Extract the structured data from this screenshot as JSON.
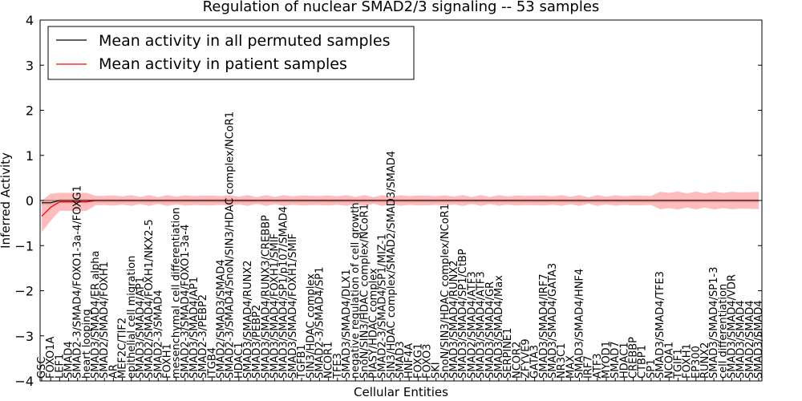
{
  "chart_data": {
    "type": "line",
    "title": "Regulation of nuclear SMAD2/3 signaling -- 53 samples",
    "xlabel": "Cellular Entities",
    "ylabel": "Inferred Activity",
    "ylim": [
      -4,
      4
    ],
    "yticks": [
      -4,
      -3,
      -2,
      -1,
      0,
      1,
      2,
      3,
      4
    ],
    "grid": false,
    "legend_position": "top-left",
    "series": [
      {
        "name": "Mean activity in all permuted samples",
        "color": "#000000"
      },
      {
        "name": "Mean activity in patient samples",
        "color": "#ff0000"
      }
    ],
    "entities": [
      "GSC",
      "FOXO1A",
      "LEF1",
      "SMAD4",
      "SMAD2-3/SMAD4/FOXO1-3a-4/FOXG1",
      "heart looping",
      "SMAD3/SMAD4/ER alpha",
      "SMAD2/SMAD4/FOXH1",
      "AR",
      "MEF2C/TIF2",
      "epithelial cell migration",
      "SMAD3/SMAD4/AP1",
      "SMAD2/SMAD4/FOXH1/NKX2-5",
      "SMAD2-3/SMAD4",
      "FOXH1",
      "mesenchymal cell differentiation",
      "SMAD2-3/SMAD4/FOXO1-3a-4",
      "SMAD3/SMAD4/AP1",
      "SMAD2-3/PEBP2",
      "ITGB4",
      "SMAD2/SMAD3/SMAD4",
      "SMAD2-3/SMAD4/SnoN/SIN3/HDAC complex/NCoR1",
      "HDAC1",
      "SMAD3/SMAD4/RUNX2",
      "SMAD3/PEBP2",
      "SMAD3/SMAD4/RUNX3/CREBBP",
      "SMAD3/SMAD4/FOXH1/SMIF",
      "SMAD3/SMAD4/SP1/p107/SMAD4",
      "SMAD3/SMAD4/FOXH1/SMIF",
      "TGFB1",
      "SIN3/HDAC complex",
      "SMAD2-3/SMAD4/SP1",
      "NCOR1",
      "TFE3",
      "SMAD3/SMAD4/DLX1",
      "negative regulation of cell growth",
      "SnoN/SIN3/HDAC complex/NCoR1",
      "PIASY/HDAC complex",
      "SMAD2-3/SMAD4/SP1/MIZ-1",
      "SIN3/HDAC complex/SMAD2/SMAD3/SMAD4",
      "SMAD3",
      "HNF4A",
      "FOXG1",
      "FOXO3",
      "SKI",
      "SnoN/SIN3/HDAC complex/NCoR1",
      "SMAD3/SMAD4/RUNX2",
      "SMAD3/SMAD4/SP1/CtBP",
      "SMAD2/SMAD4/ATF3",
      "SMAD3/SMAD4/ATF3",
      "SMAD3/SMAD4/GR",
      "SMAD3/SMAD4/Max",
      "SERPINE1",
      "NCOR2",
      "ZFYVE9",
      "GATA3",
      "SMAD3/SMAD4/IRF7",
      "SMAD3/SMAD4/GATA3",
      "NR3C1",
      "MAX",
      "SMAD3/SMAD4/HNF4",
      "IRF7",
      "ATF3",
      "MYOD1",
      "SMAD7",
      "HDAC1",
      "CREBBP",
      "CTBP1",
      "SP1",
      "SMAD3/SMAD4/TFE3",
      "NCOA1",
      "TGIF1",
      "FOXH1",
      "EP300",
      "RUNX2",
      "SMAD3/SMAD4/SP1-3",
      "cell differentiation",
      "SMAD3/SMAD4/VDR",
      "SMAD3/SMAD4",
      "SMAD2/SMAD4",
      "SMAD3/SMAD4"
    ]
  }
}
